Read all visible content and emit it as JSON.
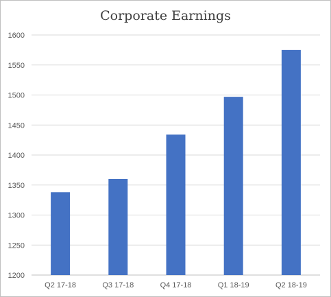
{
  "chart_data": {
    "type": "bar",
    "title": "Corporate Earnings",
    "categories": [
      "Q2 17-18",
      "Q3 17-18",
      "Q4 17-18",
      "Q1 18-19",
      "Q2 18-19"
    ],
    "series": [
      {
        "values": [
          1338,
          1360,
          1434,
          1497,
          1575
        ],
        "color": "#4472c4"
      }
    ],
    "xlabel": "",
    "ylabel": "",
    "ylim": [
      1200,
      1600
    ],
    "yticks": [
      1200,
      1250,
      1300,
      1350,
      1400,
      1450,
      1500,
      1550,
      1600
    ],
    "grid": true,
    "legend": "none"
  }
}
